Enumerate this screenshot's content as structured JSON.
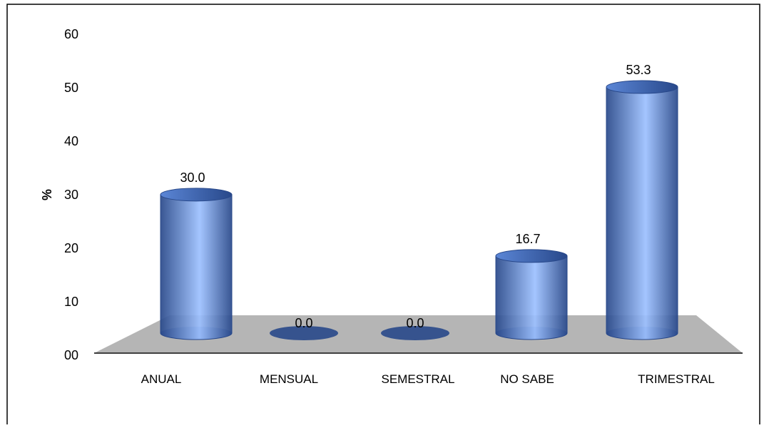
{
  "chart_data": {
    "type": "bar",
    "style": "3d-cylinder",
    "categories": [
      "ANUAL",
      "MENSUAL",
      "SEMESTRAL",
      "NO SABE",
      "TRIMESTRAL"
    ],
    "values": [
      30.0,
      0.0,
      0.0,
      16.7,
      53.3
    ],
    "data_labels": [
      "30.0",
      "0.0",
      "0.0",
      "16.7",
      "53.3"
    ],
    "ylabel": "%",
    "ylim": [
      0,
      60
    ],
    "yticks": [
      0,
      10,
      20,
      30,
      40,
      50,
      60
    ],
    "ytick_labels": [
      "00",
      "10",
      "20",
      "30",
      "40",
      "50",
      "60"
    ],
    "grid": false,
    "colors": {
      "bar": "#5b86d6",
      "bar_dark": "#28488a",
      "bar_light": "#9cc0ff",
      "floor": "#b5b5b5"
    }
  }
}
